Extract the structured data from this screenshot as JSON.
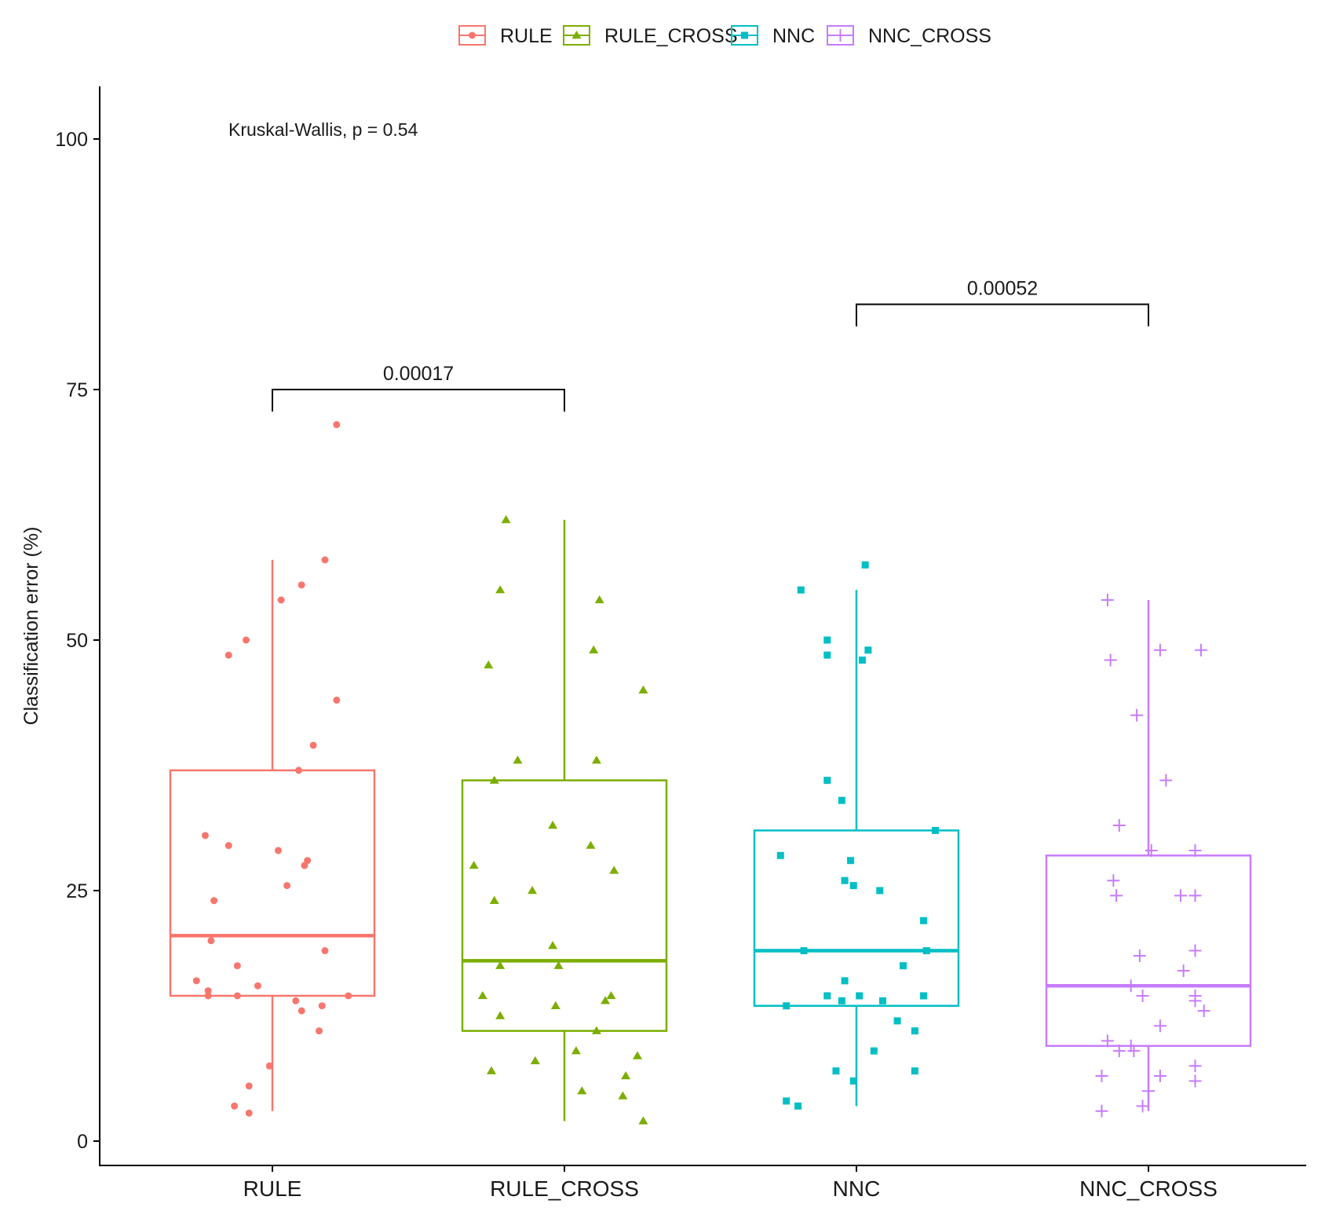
{
  "chart_data": {
    "type": "box",
    "title": "",
    "xlabel": "",
    "ylabel": "Classification error (%)",
    "ylim": [
      -5,
      106
    ],
    "yticks": [
      0,
      25,
      50,
      75,
      100
    ],
    "yticklabels": [
      "0",
      "25",
      "50",
      "75",
      "100"
    ],
    "categories": [
      "RULE",
      "RULE_CROSS",
      "NNC",
      "NNC_CROSS"
    ],
    "legend": {
      "position": "top",
      "entries": [
        {
          "label": "RULE",
          "color": "#F8766D",
          "shape": "circle"
        },
        {
          "label": "RULE_CROSS",
          "color": "#7CAE00",
          "shape": "triangle"
        },
        {
          "label": "NNC",
          "color": "#00BFC4",
          "shape": "square"
        },
        {
          "label": "NNC_CROSS",
          "color": "#C77CFF",
          "shape": "plus"
        }
      ]
    },
    "annotation": "Kruskal-Wallis, p = 0.54",
    "comparisons": [
      {
        "group1": "RULE",
        "group2": "RULE_CROSS",
        "label": "0.00017",
        "y": 75
      },
      {
        "group1": "NNC",
        "group2": "NNC_CROSS",
        "label": "0.00052",
        "y": 83.5
      }
    ],
    "series": [
      {
        "name": "RULE",
        "color": "#F8766D",
        "shape": "circle",
        "box": {
          "min": 3,
          "q1": 14.5,
          "median": 20.5,
          "q3": 37,
          "max": 58
        },
        "points": [
          [
            0.22,
            71.5
          ],
          [
            0.18,
            58
          ],
          [
            0.1,
            55.5
          ],
          [
            0.03,
            54
          ],
          [
            -0.09,
            50
          ],
          [
            -0.15,
            48.5
          ],
          [
            0.22,
            44
          ],
          [
            0.14,
            39.5
          ],
          [
            0.09,
            37
          ],
          [
            -0.23,
            30.5
          ],
          [
            -0.15,
            29.5
          ],
          [
            0.02,
            29
          ],
          [
            0.12,
            28
          ],
          [
            0.11,
            27.5
          ],
          [
            0.05,
            25.5
          ],
          [
            -0.2,
            24
          ],
          [
            -0.21,
            20
          ],
          [
            0.18,
            19
          ],
          [
            -0.12,
            17.5
          ],
          [
            -0.26,
            16
          ],
          [
            -0.22,
            15
          ],
          [
            -0.22,
            14.5
          ],
          [
            -0.12,
            14.5
          ],
          [
            -0.05,
            15.5
          ],
          [
            0.08,
            14
          ],
          [
            0.26,
            14.5
          ],
          [
            0.17,
            13.5
          ],
          [
            0.1,
            13
          ],
          [
            0.16,
            11
          ],
          [
            -0.01,
            7.5
          ],
          [
            -0.08,
            5.5
          ],
          [
            -0.13,
            3.5
          ],
          [
            -0.08,
            2.8
          ]
        ]
      },
      {
        "name": "RULE_CROSS",
        "color": "#7CAE00",
        "shape": "triangle",
        "box": {
          "min": 2,
          "q1": 11,
          "median": 18,
          "q3": 36,
          "max": 62
        },
        "points": [
          [
            -0.2,
            62
          ],
          [
            -0.22,
            55
          ],
          [
            0.12,
            54
          ],
          [
            -0.26,
            47.5
          ],
          [
            0.1,
            49
          ],
          [
            0.27,
            45
          ],
          [
            -0.16,
            38
          ],
          [
            0.11,
            38
          ],
          [
            -0.24,
            36
          ],
          [
            -0.04,
            31.5
          ],
          [
            0.09,
            29.5
          ],
          [
            -0.31,
            27.5
          ],
          [
            0.17,
            27
          ],
          [
            -0.11,
            25
          ],
          [
            -0.24,
            24
          ],
          [
            -0.04,
            19.5
          ],
          [
            -0.22,
            17.5
          ],
          [
            -0.02,
            17.5
          ],
          [
            -0.28,
            14.5
          ],
          [
            0.16,
            14.5
          ],
          [
            0.14,
            14
          ],
          [
            -0.22,
            12.5
          ],
          [
            -0.03,
            13.5
          ],
          [
            0.11,
            11
          ],
          [
            0.04,
            9
          ],
          [
            0.25,
            8.5
          ],
          [
            -0.1,
            8
          ],
          [
            -0.25,
            7
          ],
          [
            0.21,
            6.5
          ],
          [
            0.06,
            5
          ],
          [
            0.2,
            4.5
          ],
          [
            0.27,
            2
          ]
        ]
      },
      {
        "name": "NNC",
        "color": "#00BFC4",
        "shape": "square",
        "box": {
          "min": 3.5,
          "q1": 13.5,
          "median": 19,
          "q3": 31,
          "max": 55
        },
        "points": [
          [
            0.03,
            57.5
          ],
          [
            -0.19,
            55
          ],
          [
            -0.1,
            50
          ],
          [
            -0.1,
            48.5
          ],
          [
            0.04,
            49
          ],
          [
            0.02,
            48
          ],
          [
            -0.1,
            36
          ],
          [
            -0.05,
            34
          ],
          [
            0.27,
            31
          ],
          [
            -0.26,
            28.5
          ],
          [
            -0.02,
            28
          ],
          [
            -0.04,
            26
          ],
          [
            -0.01,
            25.5
          ],
          [
            0.08,
            25
          ],
          [
            0.23,
            22
          ],
          [
            -0.18,
            19
          ],
          [
            0.24,
            19
          ],
          [
            0.16,
            17.5
          ],
          [
            -0.04,
            16
          ],
          [
            -0.1,
            14.5
          ],
          [
            -0.05,
            14
          ],
          [
            0.01,
            14.5
          ],
          [
            0.09,
            14
          ],
          [
            0.23,
            14.5
          ],
          [
            -0.24,
            13.5
          ],
          [
            0.14,
            12
          ],
          [
            0.2,
            11
          ],
          [
            0.06,
            9
          ],
          [
            -0.07,
            7
          ],
          [
            0.2,
            7
          ],
          [
            -0.01,
            6
          ],
          [
            -0.24,
            4
          ],
          [
            -0.2,
            3.5
          ]
        ]
      },
      {
        "name": "NNC_CROSS",
        "color": "#C77CFF",
        "shape": "plus",
        "box": {
          "min": 3,
          "q1": 9.5,
          "median": 15.5,
          "q3": 28.5,
          "max": 54
        },
        "points": [
          [
            -0.14,
            54
          ],
          [
            -0.13,
            48
          ],
          [
            0.04,
            49
          ],
          [
            0.18,
            49
          ],
          [
            -0.04,
            42.5
          ],
          [
            0.06,
            36
          ],
          [
            -0.1,
            31.5
          ],
          [
            0.01,
            29
          ],
          [
            0.16,
            29
          ],
          [
            -0.12,
            26
          ],
          [
            -0.11,
            24.5
          ],
          [
            0.11,
            24.5
          ],
          [
            0.16,
            24.5
          ],
          [
            -0.03,
            18.5
          ],
          [
            0.16,
            19
          ],
          [
            0.12,
            17
          ],
          [
            -0.06,
            15.5
          ],
          [
            -0.02,
            14.5
          ],
          [
            0.16,
            14.5
          ],
          [
            0.16,
            14
          ],
          [
            0.19,
            13
          ],
          [
            0.04,
            11.5
          ],
          [
            -0.14,
            10
          ],
          [
            -0.06,
            9.5
          ],
          [
            -0.05,
            9
          ],
          [
            -0.1,
            9
          ],
          [
            -0.16,
            6.5
          ],
          [
            0.16,
            7.5
          ],
          [
            0.04,
            6.5
          ],
          [
            0.16,
            6
          ],
          [
            0.0,
            5
          ],
          [
            -0.16,
            3
          ],
          [
            -0.02,
            3.5
          ]
        ]
      }
    ]
  }
}
